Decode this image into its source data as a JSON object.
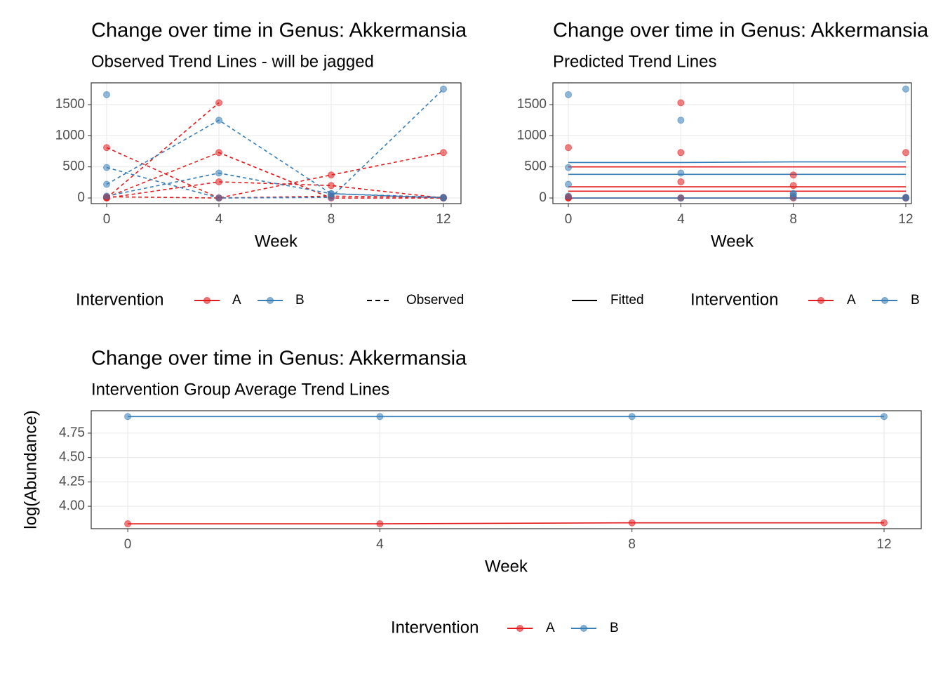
{
  "chart_data": [
    {
      "type": "line",
      "title": "Change over time in Genus: Akkermansia",
      "subtitle": "Observed Trend Lines - will be jagged",
      "xlabel": "Week",
      "x": [
        0,
        4,
        8,
        12
      ],
      "xlim": [
        -0.55,
        12.625
      ],
      "xticks": [
        0,
        4,
        8,
        12
      ],
      "ylim": [
        -90,
        1850
      ],
      "yticks": [
        0,
        500,
        1000,
        1500
      ],
      "grid": true,
      "line_style": "dashed",
      "legend_title": "Intervention",
      "legend_groups": [
        {
          "name": "A",
          "color": "#e41a1c"
        },
        {
          "name": "B",
          "color": "#377eb8"
        }
      ],
      "linetype_legend": "Observed",
      "series": [
        {
          "color": "#e41a1c",
          "values": [
            810,
            0,
            30,
            10
          ]
        },
        {
          "color": "#e41a1c",
          "values": [
            0,
            1530,
            null,
            0
          ]
        },
        {
          "color": "#e41a1c",
          "values": [
            10,
            730,
            0,
            0
          ]
        },
        {
          "color": "#e41a1c",
          "values": [
            0,
            260,
            200,
            0
          ]
        },
        {
          "color": "#e41a1c",
          "values": [
            20,
            0,
            370,
            730
          ]
        },
        {
          "color": "#377eb8",
          "values": [
            1660,
            null,
            null,
            null
          ]
        },
        {
          "color": "#377eb8",
          "values": [
            220,
            1250,
            70,
            0
          ]
        },
        {
          "color": "#377eb8",
          "values": [
            490,
            0,
            10,
            1750
          ]
        },
        {
          "color": "#377eb8",
          "values": [
            30,
            400,
            70,
            10
          ]
        }
      ]
    },
    {
      "type": "scatter",
      "title": "Change over time in Genus: Akkermansia",
      "subtitle": "Predicted Trend Lines",
      "xlabel": "Week",
      "x": [
        0,
        4,
        8,
        12
      ],
      "xlim": [
        -0.55,
        12.2
      ],
      "xticks": [
        0,
        4,
        8,
        12
      ],
      "ylim": [
        -90,
        1850
      ],
      "yticks": [
        0,
        500,
        1000,
        1500
      ],
      "grid": true,
      "legend_title": "Intervention",
      "legend_groups": [
        {
          "name": "A",
          "color": "#e41a1c"
        },
        {
          "name": "B",
          "color": "#377eb8"
        }
      ],
      "linetype_legend": "Fitted",
      "series": [
        {
          "color": "#e41a1c",
          "values": [
            810,
            0,
            30,
            10
          ]
        },
        {
          "color": "#e41a1c",
          "values": [
            0,
            1530,
            null,
            0
          ]
        },
        {
          "color": "#e41a1c",
          "values": [
            10,
            730,
            0,
            0
          ]
        },
        {
          "color": "#e41a1c",
          "values": [
            0,
            260,
            200,
            0
          ]
        },
        {
          "color": "#e41a1c",
          "values": [
            20,
            0,
            370,
            730
          ]
        },
        {
          "color": "#377eb8",
          "values": [
            1660,
            null,
            null,
            null
          ]
        },
        {
          "color": "#377eb8",
          "values": [
            220,
            1250,
            70,
            0
          ]
        },
        {
          "color": "#377eb8",
          "values": [
            490,
            0,
            10,
            1750
          ]
        },
        {
          "color": "#377eb8",
          "values": [
            30,
            400,
            70,
            10
          ]
        }
      ],
      "fitted_series": [
        {
          "color": "#e41a1c",
          "values": [
            110,
            110,
            110,
            110
          ]
        },
        {
          "color": "#e41a1c",
          "values": [
            500,
            500,
            500,
            500
          ]
        },
        {
          "color": "#e41a1c",
          "values": [
            180,
            180,
            180,
            180
          ]
        },
        {
          "color": "#e41a1c",
          "values": [
            0,
            0,
            0,
            0
          ]
        },
        {
          "color": "#377eb8",
          "values": [
            570,
            570,
            580,
            580
          ]
        },
        {
          "color": "#377eb8",
          "values": [
            380,
            380,
            380,
            380
          ]
        },
        {
          "color": "#377eb8",
          "values": [
            0,
            0,
            0,
            0
          ]
        }
      ]
    },
    {
      "type": "line",
      "title": "Change over time in Genus: Akkermansia",
      "subtitle": "Intervention Group Average Trend Lines",
      "xlabel": "Week",
      "ylabel": "log(Abundance)",
      "x": [
        0,
        4,
        8,
        12
      ],
      "xlim": [
        -0.58,
        12.59
      ],
      "xticks": [
        0,
        4,
        8,
        12
      ],
      "ylim": [
        3.77,
        4.98
      ],
      "yticks": [
        {
          "value": 4,
          "label": "4.00"
        },
        4.25,
        {
          "value": 4.5,
          "label": "4.50"
        },
        4.75
      ],
      "grid": true,
      "line_style": "solid",
      "legend_title": "Intervention",
      "series": [
        {
          "name": "A",
          "color": "#e41a1c",
          "values": [
            3.82,
            3.82,
            3.83,
            3.83
          ]
        },
        {
          "name": "B",
          "color": "#377eb8",
          "values": [
            4.92,
            4.92,
            4.92,
            4.92
          ]
        }
      ]
    }
  ]
}
